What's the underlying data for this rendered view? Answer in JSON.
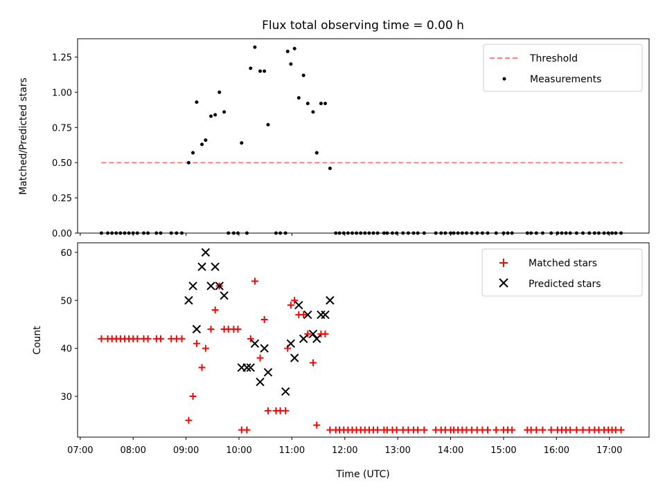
{
  "colors": {
    "threshold": "#ff7f7f",
    "measurement": "#000000",
    "matched": "#ff0000",
    "predicted": "#000000"
  },
  "chart_data": [
    {
      "type": "scatter",
      "title": "Flux total observing time = 0.00 h",
      "xlabel": "",
      "ylabel": "Matched/Predicted stars",
      "xlim": [
        6.95,
        17.75
      ],
      "ylim": [
        0,
        1.38
      ],
      "yticks": [
        "0.00",
        "0.25",
        "0.50",
        "0.75",
        "1.00",
        "1.25"
      ],
      "legend": {
        "position": "top-right",
        "threshold": "Threshold",
        "measurements": "Measurements"
      },
      "threshold": {
        "x": [
          7.4,
          17.25
        ],
        "y": 0.5
      },
      "measurements": {
        "x": [
          7.4,
          7.52,
          7.6,
          7.68,
          7.76,
          7.84,
          7.92,
          8.0,
          8.08,
          8.2,
          8.28,
          8.44,
          8.52,
          8.72,
          8.82,
          8.92,
          9.05,
          9.13,
          9.2,
          9.3,
          9.37,
          9.47,
          9.55,
          9.63,
          9.72,
          9.8,
          9.9,
          9.98,
          10.05,
          10.15,
          10.22,
          10.3,
          10.4,
          10.48,
          10.55,
          10.7,
          10.78,
          10.88,
          10.92,
          10.98,
          11.05,
          11.13,
          11.22,
          11.3,
          11.4,
          11.47,
          11.55,
          11.63,
          11.72,
          11.83,
          11.9,
          11.98,
          12.06,
          12.14,
          12.22,
          12.3,
          12.38,
          12.46,
          12.54,
          12.62,
          12.74,
          12.8,
          12.9,
          12.98,
          13.1,
          13.2,
          13.3,
          13.38,
          13.5,
          13.72,
          13.82,
          13.9,
          14.0,
          14.06,
          14.14,
          14.22,
          14.3,
          14.4,
          14.5,
          14.6,
          14.7,
          14.86,
          15.0,
          15.08,
          15.16,
          15.45,
          15.52,
          15.62,
          15.74,
          15.9,
          16.02,
          16.1,
          16.18,
          16.26,
          16.38,
          16.5,
          16.62,
          16.72,
          16.8,
          16.9,
          16.98,
          17.05,
          17.12,
          17.22
        ],
        "y": [
          0,
          0,
          0,
          0,
          0,
          0,
          0,
          0,
          0,
          0,
          0,
          0,
          0,
          0,
          0,
          0,
          0.5,
          0.57,
          0.93,
          0.63,
          0.66,
          0.83,
          0.84,
          1.0,
          0.86,
          0,
          0,
          0,
          0.64,
          0,
          1.17,
          1.32,
          1.15,
          1.15,
          0.77,
          0,
          0,
          0,
          1.29,
          1.2,
          1.31,
          0.96,
          1.12,
          0.92,
          0.86,
          0.57,
          0.92,
          0.92,
          0.46,
          0,
          0,
          0,
          0,
          0,
          0,
          0,
          0,
          0,
          0,
          0,
          0,
          0,
          0,
          0,
          0,
          0,
          0,
          0,
          0,
          0,
          0,
          0,
          0,
          0,
          0,
          0,
          0,
          0,
          0,
          0,
          0,
          0,
          0,
          0,
          0,
          0,
          0,
          0,
          0,
          0,
          0,
          0,
          0,
          0,
          0,
          0,
          0,
          0,
          0,
          0,
          0,
          0,
          0,
          0
        ]
      }
    },
    {
      "type": "scatter",
      "title": "",
      "xlabel": "Time (UTC)",
      "ylabel": "Count",
      "xlim": [
        6.95,
        17.75
      ],
      "ylim": [
        21.5,
        62
      ],
      "yticks": [
        "30",
        "40",
        "50",
        "60"
      ],
      "xticks": [
        "07:00",
        "08:00",
        "09:00",
        "10:00",
        "11:00",
        "12:00",
        "13:00",
        "14:00",
        "15:00",
        "16:00",
        "17:00"
      ],
      "legend": {
        "position": "top-right",
        "matched": "Matched stars",
        "predicted": "Predicted stars"
      },
      "series": [
        {
          "name": "Matched stars",
          "marker": "plus",
          "x": [
            7.4,
            7.52,
            7.6,
            7.68,
            7.76,
            7.84,
            7.92,
            8.0,
            8.08,
            8.2,
            8.28,
            8.44,
            8.52,
            8.72,
            8.82,
            8.92,
            9.05,
            9.13,
            9.2,
            9.3,
            9.37,
            9.47,
            9.55,
            9.63,
            9.72,
            9.8,
            9.9,
            9.98,
            10.05,
            10.15,
            10.22,
            10.3,
            10.4,
            10.48,
            10.55,
            10.7,
            10.78,
            10.88,
            10.92,
            10.98,
            11.05,
            11.13,
            11.22,
            11.3,
            11.4,
            11.47,
            11.55,
            11.63,
            11.72,
            11.83,
            11.9,
            11.98,
            12.06,
            12.14,
            12.22,
            12.3,
            12.38,
            12.46,
            12.54,
            12.62,
            12.74,
            12.8,
            12.9,
            12.98,
            13.1,
            13.2,
            13.3,
            13.38,
            13.5,
            13.72,
            13.82,
            13.9,
            14.0,
            14.06,
            14.14,
            14.22,
            14.3,
            14.4,
            14.5,
            14.6,
            14.7,
            14.86,
            15.0,
            15.08,
            15.16,
            15.45,
            15.52,
            15.62,
            15.74,
            15.9,
            16.02,
            16.1,
            16.18,
            16.26,
            16.38,
            16.5,
            16.62,
            16.72,
            16.8,
            16.9,
            16.98,
            17.05,
            17.12,
            17.22
          ],
          "y": [
            42,
            42,
            42,
            42,
            42,
            42,
            42,
            42,
            42,
            42,
            42,
            42,
            42,
            42,
            42,
            42,
            25,
            30,
            41,
            36,
            40,
            44,
            48,
            53,
            44,
            44,
            44,
            44,
            23,
            23,
            42,
            54,
            38,
            46,
            27,
            27,
            27,
            27,
            40,
            49,
            50,
            47,
            47,
            43,
            37,
            24,
            43,
            43,
            23,
            23,
            23,
            23,
            23,
            23,
            23,
            23,
            23,
            23,
            23,
            23,
            23,
            23,
            23,
            23,
            23,
            23,
            23,
            23,
            23,
            23,
            23,
            23,
            23,
            23,
            23,
            23,
            23,
            23,
            23,
            23,
            23,
            23,
            23,
            23,
            23,
            23,
            23,
            23,
            23,
            23,
            23,
            23,
            23,
            23,
            23,
            23,
            23,
            23,
            23,
            23,
            23,
            23,
            23,
            23
          ]
        },
        {
          "name": "Predicted stars",
          "marker": "x",
          "x": [
            9.05,
            9.13,
            9.2,
            9.3,
            9.37,
            9.47,
            9.55,
            9.63,
            9.72,
            10.05,
            10.15,
            10.22,
            10.3,
            10.4,
            10.48,
            10.55,
            10.88,
            10.98,
            11.05,
            11.13,
            11.22,
            11.3,
            11.4,
            11.47,
            11.55,
            11.63,
            11.72
          ],
          "y": [
            50,
            53,
            44,
            57,
            60,
            53,
            57,
            53,
            51,
            36,
            36,
            36,
            41,
            33,
            40,
            35,
            31,
            41,
            38,
            49,
            42,
            47,
            43,
            42,
            47,
            47,
            50
          ]
        }
      ]
    }
  ]
}
